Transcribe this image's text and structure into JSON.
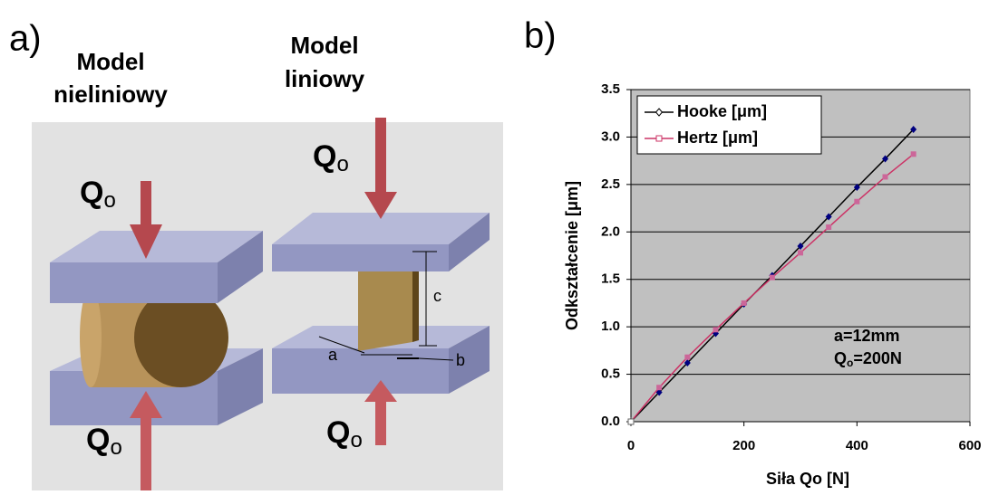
{
  "panel_a": {
    "label": "a)",
    "left_title": [
      "Model",
      "nieliniowy"
    ],
    "right_title": [
      "Model",
      "liniowy"
    ],
    "force": {
      "symbol": "Q",
      "sub": "o"
    },
    "dims": [
      "a",
      "b",
      "c"
    ]
  },
  "chart_data": {
    "type": "line",
    "panel_label": "b)",
    "x_label": "Siła Qo [N]",
    "y_label": "Odkształcenie [μm]",
    "x": [
      0,
      50,
      100,
      150,
      200,
      250,
      300,
      350,
      400,
      450,
      500
    ],
    "series": [
      {
        "name": "Hooke [μm]",
        "color": "#000000",
        "marker": "diamond",
        "marker_color": "#000080",
        "values": [
          0,
          0.31,
          0.62,
          0.93,
          1.24,
          1.54,
          1.85,
          2.16,
          2.47,
          2.77,
          3.08
        ]
      },
      {
        "name": "Hertz [μm]",
        "color": "#cc3366",
        "marker": "square",
        "marker_color": "#cc6699",
        "values": [
          0,
          0.36,
          0.68,
          0.97,
          1.25,
          1.52,
          1.78,
          2.05,
          2.32,
          2.58,
          2.82
        ]
      }
    ],
    "xlim": [
      0,
      600
    ],
    "xticks": [
      0,
      200,
      400,
      600
    ],
    "ylim": [
      0,
      3.5
    ],
    "yticks": [
      {
        "value": 0,
        "label": "0.0"
      },
      0.5,
      {
        "value": 1,
        "label": "1.0"
      },
      1.5,
      {
        "value": 2,
        "label": "2.0"
      },
      2.5,
      {
        "value": 3,
        "label": "3.0"
      },
      3.5
    ],
    "grid": true,
    "legend": "upper-left",
    "background": "#c0c0c0",
    "annotation": {
      "line1": "a=12mm",
      "line2": {
        "symbol": "Q",
        "sub": "o",
        "rest": "=200N"
      }
    }
  }
}
